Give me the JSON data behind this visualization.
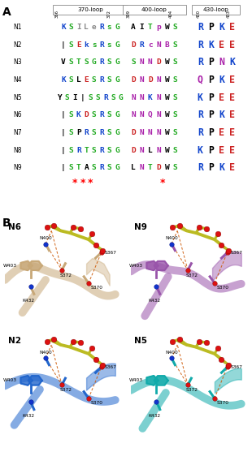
{
  "panel_a_label": "A",
  "panel_b_label": "B",
  "loop_labels": [
    "370-loop",
    "400-loop",
    "430-loop"
  ],
  "na_labels": [
    "N1",
    "N2",
    "N3",
    "N4",
    "N5",
    "N6",
    "N7",
    "N8",
    "N9"
  ],
  "seq_370": [
    [
      [
        "K",
        "#1144CC"
      ],
      [
        "S",
        "#22AA22"
      ],
      [
        "I",
        "#888888"
      ],
      [
        "L",
        "#888888"
      ],
      [
        "e",
        "#888888"
      ],
      [
        "R",
        "#1144CC"
      ],
      [
        "s",
        "#22AA22"
      ],
      [
        "G",
        "#22AA22"
      ]
    ],
    [
      [
        "|",
        "black"
      ],
      [
        "S",
        "#22AA22"
      ],
      [
        "E",
        "#CC2222"
      ],
      [
        "k",
        "#1144CC"
      ],
      [
        "s",
        "#22AA22"
      ],
      [
        "R",
        "#1144CC"
      ],
      [
        "s",
        "#22AA22"
      ],
      [
        "G",
        "#22AA22"
      ]
    ],
    [
      [
        "V",
        "black"
      ],
      [
        "S",
        "#22AA22"
      ],
      [
        "T",
        "#22AA22"
      ],
      [
        "S",
        "#22AA22"
      ],
      [
        "G",
        "#22AA22"
      ],
      [
        "R",
        "#1144CC"
      ],
      [
        "S",
        "#22AA22"
      ],
      [
        "G",
        "#22AA22"
      ]
    ],
    [
      [
        "K",
        "#1144CC"
      ],
      [
        "S",
        "#22AA22"
      ],
      [
        "L",
        "black"
      ],
      [
        "E",
        "#CC2222"
      ],
      [
        "S",
        "#22AA22"
      ],
      [
        "R",
        "#1144CC"
      ],
      [
        "S",
        "#22AA22"
      ],
      [
        "G",
        "#22AA22"
      ]
    ],
    [
      [
        "Y",
        "black"
      ],
      [
        "S",
        "#22AA22"
      ],
      [
        "I",
        "black"
      ],
      [
        "|",
        "black"
      ],
      [
        "S",
        "#22AA22"
      ],
      [
        "S",
        "#22AA22"
      ],
      [
        "R",
        "#1144CC"
      ],
      [
        "S",
        "#22AA22"
      ],
      [
        "G",
        "#22AA22"
      ]
    ],
    [
      [
        "|",
        "black"
      ],
      [
        "S",
        "#22AA22"
      ],
      [
        "K",
        "#1144CC"
      ],
      [
        "D",
        "#CC2222"
      ],
      [
        "S",
        "#22AA22"
      ],
      [
        "R",
        "#1144CC"
      ],
      [
        "S",
        "#22AA22"
      ],
      [
        "G",
        "#22AA22"
      ]
    ],
    [
      [
        "|",
        "black"
      ],
      [
        "S",
        "#22AA22"
      ],
      [
        "P",
        "black"
      ],
      [
        "R",
        "#1144CC"
      ],
      [
        "S",
        "#22AA22"
      ],
      [
        "R",
        "#1144CC"
      ],
      [
        "S",
        "#22AA22"
      ],
      [
        "G",
        "#22AA22"
      ]
    ],
    [
      [
        "|",
        "black"
      ],
      [
        "S",
        "#22AA22"
      ],
      [
        "R",
        "#1144CC"
      ],
      [
        "T",
        "#22AA22"
      ],
      [
        "S",
        "#22AA22"
      ],
      [
        "R",
        "#1144CC"
      ],
      [
        "S",
        "#22AA22"
      ],
      [
        "G",
        "#22AA22"
      ]
    ],
    [
      [
        "|",
        "black"
      ],
      [
        "S",
        "#22AA22"
      ],
      [
        "T",
        "#22AA22"
      ],
      [
        "A",
        "black"
      ],
      [
        "S",
        "#22AA22"
      ],
      [
        "R",
        "#1144CC"
      ],
      [
        "S",
        "#22AA22"
      ],
      [
        "G",
        "#22AA22"
      ]
    ]
  ],
  "seq_400": [
    [
      [
        "A",
        "black"
      ],
      [
        "I",
        "black"
      ],
      [
        "T",
        "#22AA22"
      ],
      [
        "p",
        "#AA22AA"
      ],
      [
        "W",
        "black"
      ],
      [
        "S",
        "#22AA22"
      ]
    ],
    [
      [
        "D",
        "#CC2222"
      ],
      [
        "R",
        "#1144CC"
      ],
      [
        "c",
        "#AA22AA"
      ],
      [
        "N",
        "#AA22AA"
      ],
      [
        "B",
        "#AA22AA"
      ],
      [
        "S",
        "#22AA22"
      ]
    ],
    [
      [
        "S",
        "#22AA22"
      ],
      [
        "N",
        "#AA22AA"
      ],
      [
        "N",
        "#AA22AA"
      ],
      [
        "D",
        "#CC2222"
      ],
      [
        "W",
        "black"
      ],
      [
        "S",
        "#22AA22"
      ]
    ],
    [
      [
        "D",
        "#CC2222"
      ],
      [
        "N",
        "#AA22AA"
      ],
      [
        "D",
        "#CC2222"
      ],
      [
        "N",
        "#AA22AA"
      ],
      [
        "W",
        "black"
      ],
      [
        "S",
        "#22AA22"
      ]
    ],
    [
      [
        "N",
        "#AA22AA"
      ],
      [
        "N",
        "#AA22AA"
      ],
      [
        "K",
        "#1144CC"
      ],
      [
        "N",
        "#AA22AA"
      ],
      [
        "W",
        "black"
      ],
      [
        "S",
        "#22AA22"
      ]
    ],
    [
      [
        "N",
        "#AA22AA"
      ],
      [
        "N",
        "#AA22AA"
      ],
      [
        "Q",
        "#AA22AA"
      ],
      [
        "N",
        "#AA22AA"
      ],
      [
        "W",
        "black"
      ],
      [
        "S",
        "#22AA22"
      ]
    ],
    [
      [
        "D",
        "#CC2222"
      ],
      [
        "N",
        "#AA22AA"
      ],
      [
        "N",
        "#AA22AA"
      ],
      [
        "N",
        "#AA22AA"
      ],
      [
        "W",
        "black"
      ],
      [
        "S",
        "#22AA22"
      ]
    ],
    [
      [
        "D",
        "#CC2222"
      ],
      [
        "N",
        "#AA22AA"
      ],
      [
        "L",
        "black"
      ],
      [
        "N",
        "#AA22AA"
      ],
      [
        "W",
        "black"
      ],
      [
        "S",
        "#22AA22"
      ]
    ],
    [
      [
        "L",
        "black"
      ],
      [
        "N",
        "#AA22AA"
      ],
      [
        "T",
        "#22AA22"
      ],
      [
        "D",
        "#CC2222"
      ],
      [
        "W",
        "black"
      ],
      [
        "S",
        "#22AA22"
      ]
    ]
  ],
  "seq_430": [
    [
      [
        "R",
        "#1144CC"
      ],
      [
        "P",
        "black"
      ],
      [
        "K",
        "#1144CC"
      ],
      [
        "E",
        "#CC2222"
      ]
    ],
    [
      [
        "R",
        "#1144CC"
      ],
      [
        "K",
        "#1144CC"
      ],
      [
        "E",
        "#CC2222"
      ],
      [
        "E",
        "#CC2222"
      ]
    ],
    [
      [
        "R",
        "#1144CC"
      ],
      [
        "P",
        "black"
      ],
      [
        "N",
        "#AA22AA"
      ],
      [
        "K",
        "#1144CC"
      ]
    ],
    [
      [
        "Q",
        "#AA22AA"
      ],
      [
        "P",
        "black"
      ],
      [
        "K",
        "#1144CC"
      ],
      [
        "E",
        "#CC2222"
      ]
    ],
    [
      [
        "K",
        "#1144CC"
      ],
      [
        "P",
        "black"
      ],
      [
        "E",
        "#CC2222"
      ],
      [
        "E",
        "#CC2222"
      ]
    ],
    [
      [
        "R",
        "#1144CC"
      ],
      [
        "P",
        "black"
      ],
      [
        "K",
        "#1144CC"
      ],
      [
        "E",
        "#CC2222"
      ]
    ],
    [
      [
        "R",
        "#1144CC"
      ],
      [
        "P",
        "black"
      ],
      [
        "E",
        "#CC2222"
      ],
      [
        "E",
        "#CC2222"
      ]
    ],
    [
      [
        "K",
        "#1144CC"
      ],
      [
        "P",
        "black"
      ],
      [
        "E",
        "#CC2222"
      ],
      [
        "E",
        "#CC2222"
      ]
    ],
    [
      [
        "R",
        "#1144CC"
      ],
      [
        "P",
        "black"
      ],
      [
        "K",
        "#1144CC"
      ],
      [
        "E",
        "#CC2222"
      ]
    ]
  ],
  "bg_color": "#FFFFFF",
  "subpanel_labels": [
    "N6",
    "N9",
    "N2",
    "N5"
  ],
  "subpanel_colors": [
    "#C8A878",
    "#BB77BB",
    "#3377BB",
    "#22AAAA"
  ]
}
